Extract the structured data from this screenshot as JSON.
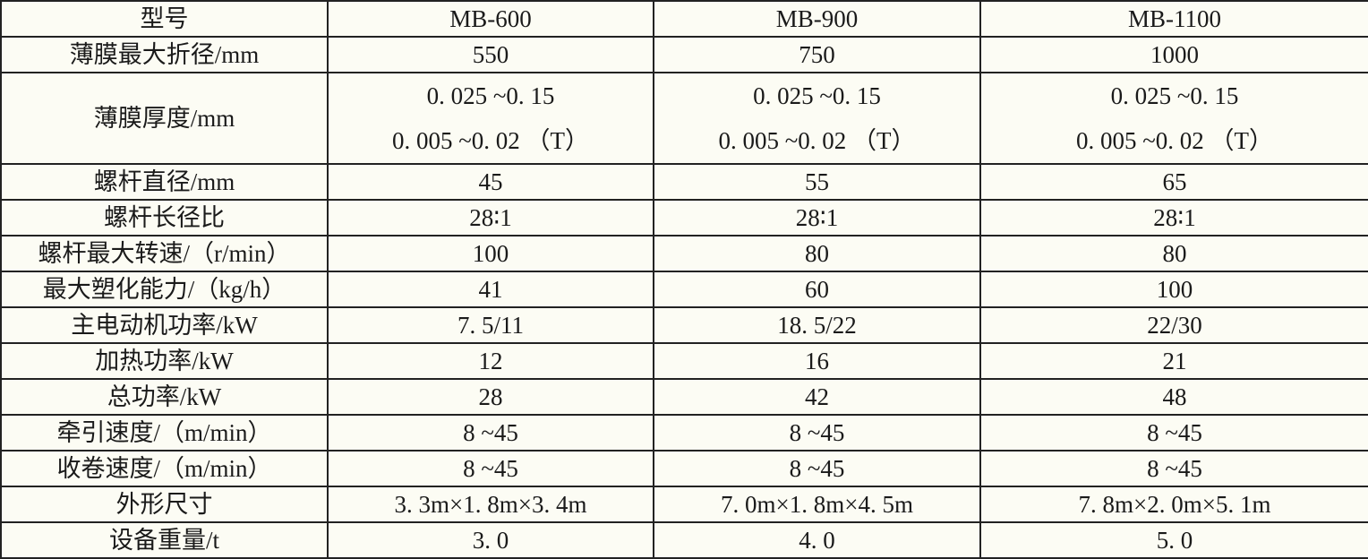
{
  "table": {
    "header": [
      "型号",
      "MB-600",
      "MB-900",
      "MB-1100"
    ],
    "rows": [
      [
        "薄膜最大折径/mm",
        "550",
        "750",
        "1000"
      ],
      [
        "薄膜厚度/mm",
        [
          "0. 025 ~0. 15",
          "0. 005 ~0. 02 （T）"
        ],
        [
          "0. 025 ~0. 15",
          "0. 005 ~0. 02 （T）"
        ],
        [
          "0. 025 ~0. 15",
          "0. 005 ~0. 02 （T）"
        ]
      ],
      [
        "螺杆直径/mm",
        "45",
        "55",
        "65"
      ],
      [
        "螺杆长径比",
        "28∶1",
        "28∶1",
        "28∶1"
      ],
      [
        "螺杆最大转速/（r/min）",
        "100",
        "80",
        "80"
      ],
      [
        "最大塑化能力/（kg/h）",
        "41",
        "60",
        "100"
      ],
      [
        "主电动机功率/kW",
        "7. 5/11",
        "18. 5/22",
        "22/30"
      ],
      [
        "加热功率/kW",
        "12",
        "16",
        "21"
      ],
      [
        "总功率/kW",
        "28",
        "42",
        "48"
      ],
      [
        "牵引速度/（m/min）",
        "8 ~45",
        "8 ~45",
        "8 ~45"
      ],
      [
        "收卷速度/（m/min）",
        "8 ~45",
        "8 ~45",
        "8 ~45"
      ],
      [
        "外形尺寸",
        "3. 3m×1. 8m×3. 4m",
        "7. 0m×1. 8m×4. 5m",
        "7. 8m×2. 0m×5. 1m"
      ],
      [
        "设备重量/t",
        "3. 0",
        "4. 0",
        "5. 0"
      ]
    ]
  }
}
